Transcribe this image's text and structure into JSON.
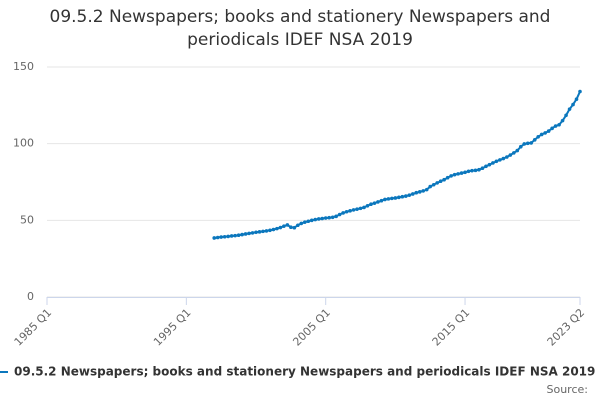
{
  "chart_data": {
    "type": "line",
    "title": "09.5.2 Newspapers; books and stationery Newspapers and periodicals IDEF NSA 2019",
    "source": "Source:",
    "categories": [
      "1985 Q1",
      null,
      null,
      null,
      null,
      null,
      null,
      null,
      null,
      null,
      null,
      null,
      null,
      null,
      null,
      null,
      null,
      null,
      null,
      null,
      null,
      null,
      null,
      null,
      null,
      null,
      null,
      null,
      null,
      null,
      null,
      null,
      null,
      null,
      null,
      null,
      null,
      null,
      null,
      null,
      "1995 Q1",
      null,
      null,
      null,
      null,
      null,
      null,
      null,
      null,
      null,
      null,
      null,
      null,
      null,
      null,
      null,
      null,
      null,
      null,
      null,
      null,
      null,
      null,
      null,
      null,
      null,
      null,
      null,
      null,
      null,
      null,
      null,
      null,
      null,
      null,
      null,
      null,
      null,
      null,
      null,
      "2005 Q1",
      null,
      null,
      null,
      null,
      null,
      null,
      null,
      null,
      null,
      null,
      null,
      null,
      null,
      null,
      null,
      null,
      null,
      null,
      null,
      null,
      null,
      null,
      null,
      null,
      null,
      null,
      null,
      null,
      null,
      null,
      null,
      null,
      null,
      null,
      null,
      null,
      null,
      null,
      null,
      "2015 Q1",
      null,
      null,
      null,
      null,
      null,
      null,
      null,
      null,
      null,
      null,
      null,
      null,
      null,
      null,
      null,
      null,
      null,
      null,
      null,
      null,
      null,
      null,
      null,
      null,
      null,
      null,
      null,
      null,
      null,
      null,
      null,
      null,
      "2023 Q2"
    ],
    "series": [
      {
        "name": "09.5.2 Newspapers; books and stationery Newspapers and periodicals IDEF NSA 2019",
        "color": "#0b77bd",
        "values": [
          null,
          null,
          null,
          null,
          null,
          null,
          null,
          null,
          null,
          null,
          null,
          null,
          null,
          null,
          null,
          null,
          null,
          null,
          null,
          null,
          null,
          null,
          null,
          null,
          null,
          null,
          null,
          null,
          null,
          null,
          null,
          null,
          null,
          null,
          null,
          null,
          null,
          null,
          null,
          null,
          null,
          null,
          null,
          null,
          null,
          null,
          null,
          null,
          38.5,
          38.8,
          39.1,
          39.3,
          39.5,
          39.8,
          40.0,
          40.3,
          40.7,
          41.1,
          41.5,
          41.8,
          42.2,
          42.5,
          42.8,
          43.1,
          43.5,
          44.0,
          44.6,
          45.3,
          46.2,
          47.0,
          45.5,
          45.2,
          46.8,
          48.0,
          48.8,
          49.4,
          50.0,
          50.5,
          50.9,
          51.2,
          51.5,
          51.7,
          52.0,
          52.6,
          53.8,
          54.8,
          55.6,
          56.2,
          56.8,
          57.3,
          57.8,
          58.4,
          59.5,
          60.5,
          61.2,
          62.0,
          62.8,
          63.6,
          64.0,
          64.3,
          64.6,
          65.0,
          65.4,
          65.8,
          66.4,
          67.2,
          68.0,
          68.6,
          69.2,
          70.0,
          72.0,
          73.2,
          74.4,
          75.5,
          76.5,
          77.8,
          79.0,
          79.8,
          80.3,
          80.8,
          81.3,
          82.0,
          82.4,
          82.6,
          83.0,
          84.0,
          85.2,
          86.3,
          87.4,
          88.5,
          89.4,
          90.3,
          91.3,
          92.6,
          94.0,
          95.5,
          98.0,
          99.8,
          100.2,
          100.5,
          102.5,
          104.5,
          106.0,
          107.0,
          108.2,
          110.0,
          111.5,
          112.3,
          115.0,
          118.5,
          122.5,
          125.5,
          129.0,
          134.0
        ]
      }
    ],
    "ylim": [
      0,
      150
    ],
    "yticks": [
      0,
      50,
      100,
      150
    ],
    "grid": true
  }
}
